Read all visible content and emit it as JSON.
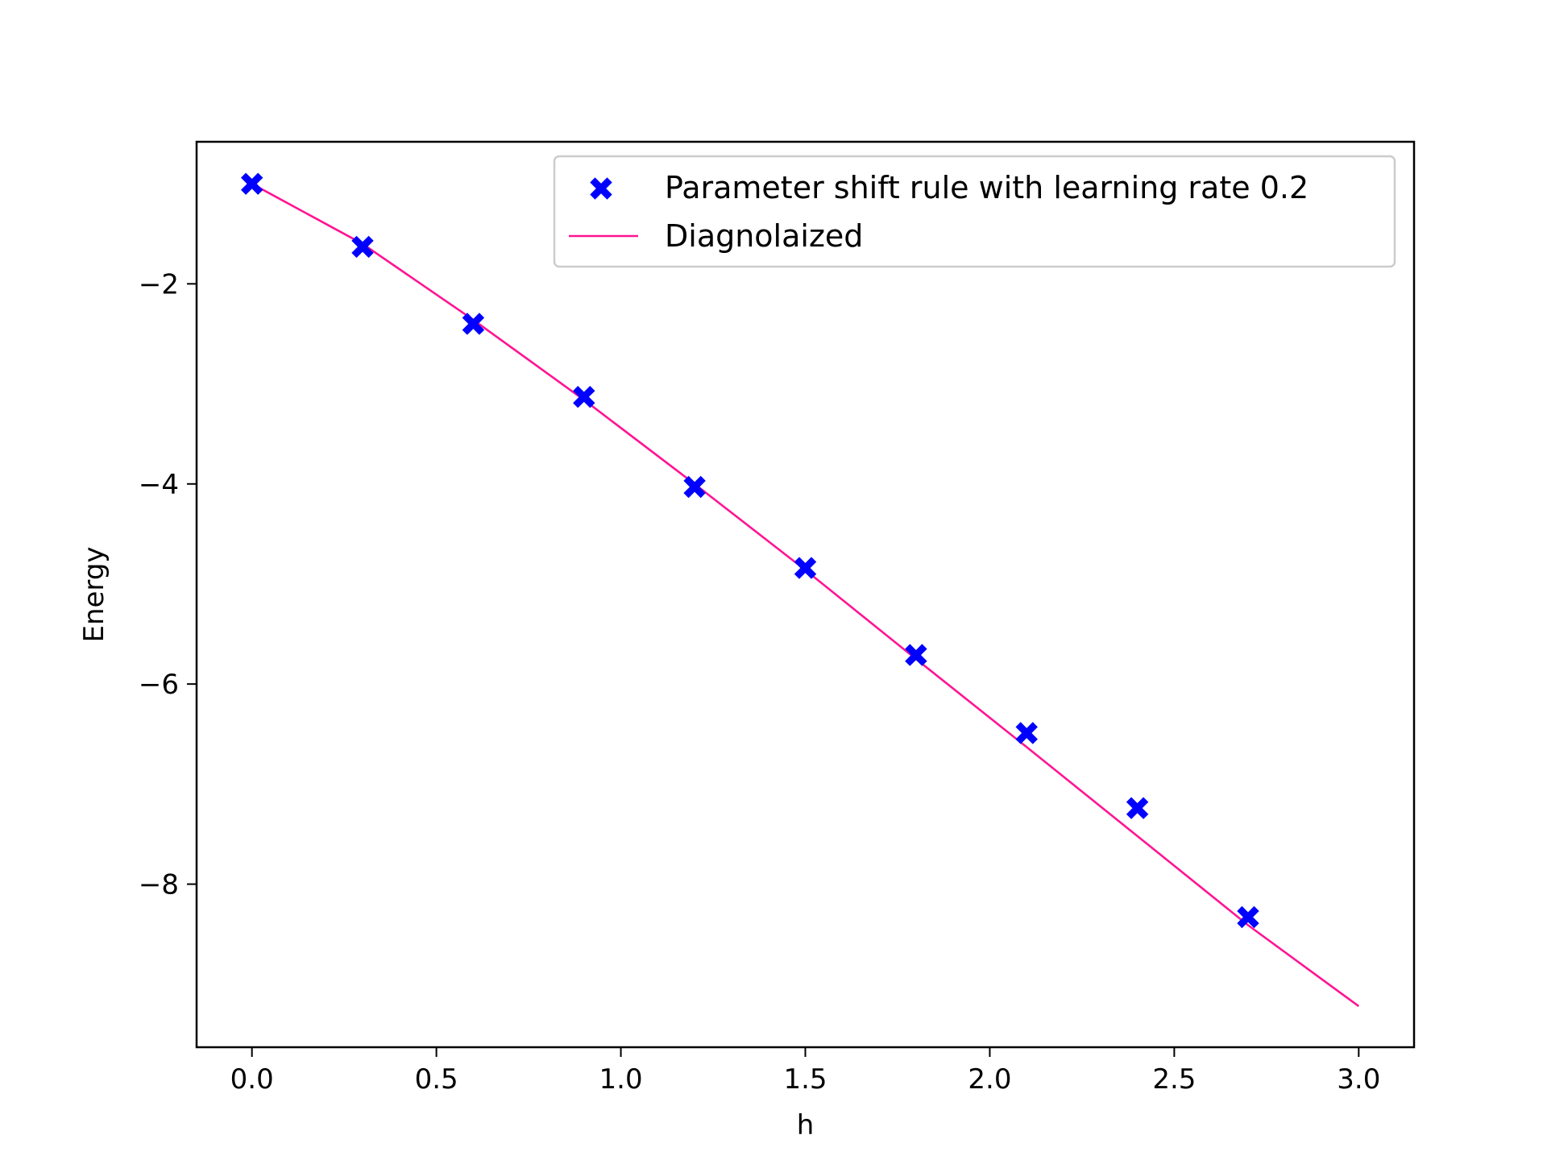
{
  "chart_data": {
    "type": "scatter",
    "title": "",
    "xlabel": "h",
    "ylabel": "Energy",
    "xlim": [
      -0.15,
      3.15
    ],
    "ylim": [
      -9.63,
      -0.58
    ],
    "x_ticks": [
      0.0,
      0.5,
      1.0,
      1.5,
      2.0,
      2.5,
      3.0
    ],
    "x_tick_labels": [
      "0.0",
      "0.5",
      "1.0",
      "1.5",
      "2.0",
      "2.5",
      "3.0"
    ],
    "y_ticks": [
      -2,
      -4,
      -6,
      -8
    ],
    "y_tick_labels": [
      "−2",
      "−4",
      "−6",
      "−8"
    ],
    "grid": false,
    "legend_position": "top-right",
    "series": [
      {
        "name": "Parameter shift rule with learning rate 0.2",
        "kind": "scatter",
        "marker": "X",
        "color": "#0000ff",
        "x": [
          0.0,
          0.3,
          0.6,
          0.9,
          1.2,
          1.5,
          1.8,
          2.1,
          2.4,
          2.7
        ],
        "y": [
          -1.0,
          -1.63,
          -2.4,
          -3.13,
          -4.03,
          -4.84,
          -5.71,
          -6.49,
          -7.24,
          -8.33
        ]
      },
      {
        "name": "Diagnolaized",
        "kind": "line",
        "color": "#ff1493",
        "x": [
          0.0,
          0.3,
          0.6,
          0.9,
          1.2,
          1.5,
          1.8,
          2.1,
          2.4,
          2.7,
          3.0
        ],
        "y": [
          -1.0,
          -1.6,
          -2.36,
          -3.16,
          -4.0,
          -4.86,
          -5.75,
          -6.63,
          -7.52,
          -8.41,
          -9.22
        ]
      }
    ]
  }
}
